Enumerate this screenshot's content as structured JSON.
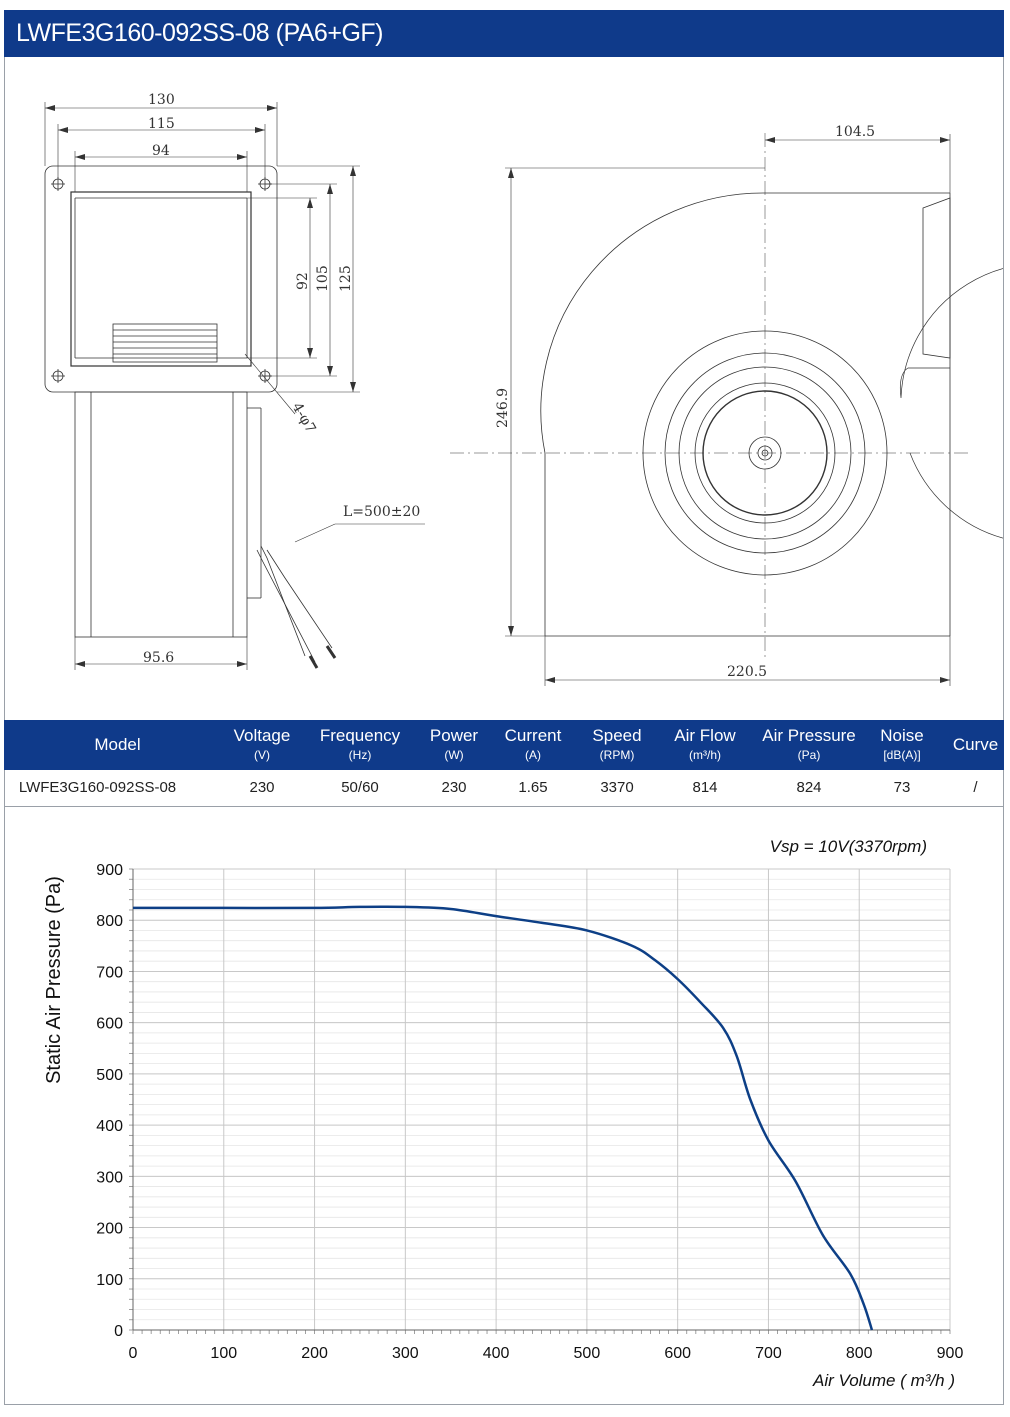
{
  "title": "LWFE3G160-092SS-08 (PA6+GF)",
  "drawing": {
    "dims": {
      "d130": "130",
      "d115": "115",
      "d94": "94",
      "d92": "92",
      "d105": "105",
      "d125": "125",
      "hole": "4-φ7",
      "cable": "L=500±20",
      "d95_6": "95.6",
      "d104_5": "104.5",
      "d246_9": "246.9",
      "d220_5": "220.5"
    }
  },
  "specs": {
    "headers": [
      {
        "main": "Model",
        "unit": ""
      },
      {
        "main": "Voltage",
        "unit": "(V)"
      },
      {
        "main": "Frequency",
        "unit": "(Hz)"
      },
      {
        "main": "Power",
        "unit": "(W)"
      },
      {
        "main": "Current",
        "unit": "(A)"
      },
      {
        "main": "Speed",
        "unit": "(RPM)"
      },
      {
        "main": "Air Flow",
        "unit": "(m³/h)"
      },
      {
        "main": "Air Pressure",
        "unit": "(Pa)"
      },
      {
        "main": "Noise",
        "unit": "[dB(A)]"
      },
      {
        "main": "Curve",
        "unit": ""
      }
    ],
    "row": [
      "LWFE3G160-092SS-08",
      "230",
      "50/60",
      "230",
      "1.65",
      "3370",
      "814",
      "824",
      "73",
      "/"
    ]
  },
  "chart_data": {
    "type": "line",
    "annotation": "Vsp = 10V(3370rpm)",
    "xlabel": "Air Volume ( m³/h )",
    "ylabel": "Static Air Pressure  (Pa)",
    "xlim": [
      0,
      900
    ],
    "ylim": [
      0,
      900
    ],
    "xticks": [
      0,
      100,
      200,
      300,
      400,
      500,
      600,
      700,
      800,
      900
    ],
    "yticks": [
      0,
      100,
      200,
      300,
      400,
      500,
      600,
      700,
      800,
      900
    ],
    "grid": true,
    "line_color": "#0d3f86",
    "series": [
      {
        "name": "",
        "x": [
          0,
          100,
          200,
          250,
          300,
          350,
          400,
          450,
          500,
          550,
          575,
          600,
          625,
          650,
          665,
          680,
          700,
          730,
          760,
          790,
          805,
          814
        ],
        "y": [
          824,
          824,
          824,
          826,
          826,
          822,
          808,
          795,
          780,
          750,
          722,
          685,
          640,
          590,
          535,
          450,
          370,
          290,
          185,
          110,
          50,
          0
        ]
      }
    ]
  }
}
